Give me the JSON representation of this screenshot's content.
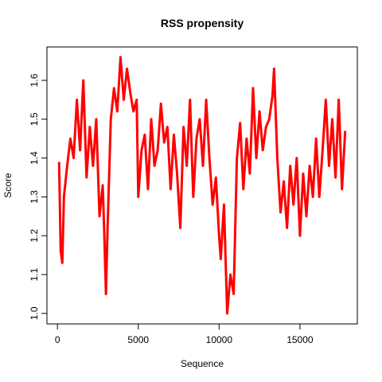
{
  "chart_data": {
    "type": "line",
    "title": "RSS propensity",
    "x_label": "Sequence",
    "y_label": "Score",
    "x": [
      100,
      200,
      300,
      400,
      600,
      800,
      1000,
      1200,
      1400,
      1600,
      1800,
      2000,
      2200,
      2400,
      2600,
      2800,
      2900,
      3000,
      3100,
      3300,
      3500,
      3700,
      3900,
      4100,
      4300,
      4500,
      4700,
      4900,
      5000,
      5200,
      5400,
      5600,
      5800,
      6000,
      6200,
      6400,
      6600,
      6800,
      7000,
      7200,
      7400,
      7600,
      7800,
      8000,
      8200,
      8400,
      8600,
      8800,
      9000,
      9200,
      9400,
      9600,
      9800,
      10000,
      10100,
      10300,
      10500,
      10700,
      10900,
      11100,
      11300,
      11500,
      11700,
      11900,
      12100,
      12300,
      12500,
      12700,
      12900,
      13100,
      13300,
      13400,
      13600,
      13800,
      14000,
      14200,
      14400,
      14600,
      14800,
      15000,
      15200,
      15400,
      15600,
      15800,
      16000,
      16200,
      16400,
      16600,
      16800,
      17000,
      17200,
      17400,
      17600,
      17800
    ],
    "series": [
      {
        "name": "Score",
        "color": "#ff0000",
        "values": [
          1.39,
          1.16,
          1.13,
          1.3,
          1.38,
          1.45,
          1.4,
          1.55,
          1.42,
          1.6,
          1.35,
          1.48,
          1.38,
          1.5,
          1.25,
          1.33,
          1.2,
          1.05,
          1.22,
          1.5,
          1.58,
          1.52,
          1.66,
          1.55,
          1.63,
          1.57,
          1.52,
          1.55,
          1.3,
          1.42,
          1.46,
          1.32,
          1.5,
          1.38,
          1.42,
          1.54,
          1.44,
          1.48,
          1.32,
          1.46,
          1.36,
          1.22,
          1.48,
          1.38,
          1.55,
          1.3,
          1.45,
          1.5,
          1.38,
          1.55,
          1.4,
          1.28,
          1.35,
          1.2,
          1.14,
          1.28,
          1.0,
          1.1,
          1.05,
          1.4,
          1.49,
          1.32,
          1.45,
          1.36,
          1.58,
          1.4,
          1.52,
          1.42,
          1.48,
          1.5,
          1.56,
          1.63,
          1.4,
          1.26,
          1.34,
          1.22,
          1.38,
          1.28,
          1.4,
          1.2,
          1.36,
          1.25,
          1.38,
          1.3,
          1.45,
          1.3,
          1.42,
          1.55,
          1.38,
          1.5,
          1.35,
          1.55,
          1.32,
          1.47
        ]
      }
    ],
    "xlim": [
      -650,
      18550
    ],
    "ylim": [
      0.973,
      1.686
    ],
    "xticks": [
      0,
      5000,
      10000,
      15000
    ],
    "yticks": [
      {
        "value": 1.0,
        "label": "1.0"
      },
      1.1,
      1.2,
      1.3,
      1.4,
      1.5,
      1.6
    ]
  }
}
